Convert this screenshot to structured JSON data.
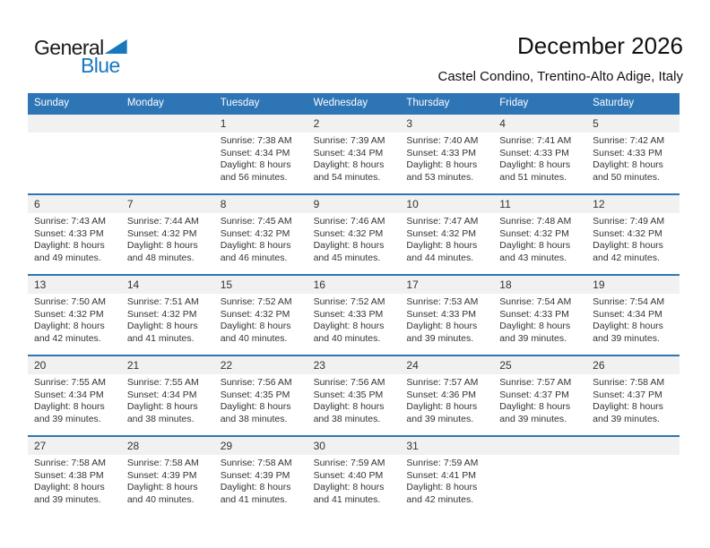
{
  "logo": {
    "general": "General",
    "blue": "Blue"
  },
  "header": {
    "title": "December 2026",
    "subtitle": "Castel Condino, Trentino-Alto Adige, Italy"
  },
  "colors": {
    "header_blue": "#2E75B6",
    "logo_blue": "#1778BE",
    "band_gray": "#F1F1F1",
    "text_dark": "#333333"
  },
  "calendar": {
    "weekdays": [
      "Sunday",
      "Monday",
      "Tuesday",
      "Wednesday",
      "Thursday",
      "Friday",
      "Saturday"
    ],
    "weeks": [
      {
        "days": [
          null,
          null,
          {
            "number": "1",
            "lines": [
              "Sunrise: 7:38 AM",
              "Sunset: 4:34 PM",
              "Daylight: 8 hours",
              "and 56 minutes."
            ]
          },
          {
            "number": "2",
            "lines": [
              "Sunrise: 7:39 AM",
              "Sunset: 4:34 PM",
              "Daylight: 8 hours",
              "and 54 minutes."
            ]
          },
          {
            "number": "3",
            "lines": [
              "Sunrise: 7:40 AM",
              "Sunset: 4:33 PM",
              "Daylight: 8 hours",
              "and 53 minutes."
            ]
          },
          {
            "number": "4",
            "lines": [
              "Sunrise: 7:41 AM",
              "Sunset: 4:33 PM",
              "Daylight: 8 hours",
              "and 51 minutes."
            ]
          },
          {
            "number": "5",
            "lines": [
              "Sunrise: 7:42 AM",
              "Sunset: 4:33 PM",
              "Daylight: 8 hours",
              "and 50 minutes."
            ]
          }
        ]
      },
      {
        "days": [
          {
            "number": "6",
            "lines": [
              "Sunrise: 7:43 AM",
              "Sunset: 4:33 PM",
              "Daylight: 8 hours",
              "and 49 minutes."
            ]
          },
          {
            "number": "7",
            "lines": [
              "Sunrise: 7:44 AM",
              "Sunset: 4:32 PM",
              "Daylight: 8 hours",
              "and 48 minutes."
            ]
          },
          {
            "number": "8",
            "lines": [
              "Sunrise: 7:45 AM",
              "Sunset: 4:32 PM",
              "Daylight: 8 hours",
              "and 46 minutes."
            ]
          },
          {
            "number": "9",
            "lines": [
              "Sunrise: 7:46 AM",
              "Sunset: 4:32 PM",
              "Daylight: 8 hours",
              "and 45 minutes."
            ]
          },
          {
            "number": "10",
            "lines": [
              "Sunrise: 7:47 AM",
              "Sunset: 4:32 PM",
              "Daylight: 8 hours",
              "and 44 minutes."
            ]
          },
          {
            "number": "11",
            "lines": [
              "Sunrise: 7:48 AM",
              "Sunset: 4:32 PM",
              "Daylight: 8 hours",
              "and 43 minutes."
            ]
          },
          {
            "number": "12",
            "lines": [
              "Sunrise: 7:49 AM",
              "Sunset: 4:32 PM",
              "Daylight: 8 hours",
              "and 42 minutes."
            ]
          }
        ]
      },
      {
        "days": [
          {
            "number": "13",
            "lines": [
              "Sunrise: 7:50 AM",
              "Sunset: 4:32 PM",
              "Daylight: 8 hours",
              "and 42 minutes."
            ]
          },
          {
            "number": "14",
            "lines": [
              "Sunrise: 7:51 AM",
              "Sunset: 4:32 PM",
              "Daylight: 8 hours",
              "and 41 minutes."
            ]
          },
          {
            "number": "15",
            "lines": [
              "Sunrise: 7:52 AM",
              "Sunset: 4:32 PM",
              "Daylight: 8 hours",
              "and 40 minutes."
            ]
          },
          {
            "number": "16",
            "lines": [
              "Sunrise: 7:52 AM",
              "Sunset: 4:33 PM",
              "Daylight: 8 hours",
              "and 40 minutes."
            ]
          },
          {
            "number": "17",
            "lines": [
              "Sunrise: 7:53 AM",
              "Sunset: 4:33 PM",
              "Daylight: 8 hours",
              "and 39 minutes."
            ]
          },
          {
            "number": "18",
            "lines": [
              "Sunrise: 7:54 AM",
              "Sunset: 4:33 PM",
              "Daylight: 8 hours",
              "and 39 minutes."
            ]
          },
          {
            "number": "19",
            "lines": [
              "Sunrise: 7:54 AM",
              "Sunset: 4:34 PM",
              "Daylight: 8 hours",
              "and 39 minutes."
            ]
          }
        ]
      },
      {
        "days": [
          {
            "number": "20",
            "lines": [
              "Sunrise: 7:55 AM",
              "Sunset: 4:34 PM",
              "Daylight: 8 hours",
              "and 39 minutes."
            ]
          },
          {
            "number": "21",
            "lines": [
              "Sunrise: 7:55 AM",
              "Sunset: 4:34 PM",
              "Daylight: 8 hours",
              "and 38 minutes."
            ]
          },
          {
            "number": "22",
            "lines": [
              "Sunrise: 7:56 AM",
              "Sunset: 4:35 PM",
              "Daylight: 8 hours",
              "and 38 minutes."
            ]
          },
          {
            "number": "23",
            "lines": [
              "Sunrise: 7:56 AM",
              "Sunset: 4:35 PM",
              "Daylight: 8 hours",
              "and 38 minutes."
            ]
          },
          {
            "number": "24",
            "lines": [
              "Sunrise: 7:57 AM",
              "Sunset: 4:36 PM",
              "Daylight: 8 hours",
              "and 39 minutes."
            ]
          },
          {
            "number": "25",
            "lines": [
              "Sunrise: 7:57 AM",
              "Sunset: 4:37 PM",
              "Daylight: 8 hours",
              "and 39 minutes."
            ]
          },
          {
            "number": "26",
            "lines": [
              "Sunrise: 7:58 AM",
              "Sunset: 4:37 PM",
              "Daylight: 8 hours",
              "and 39 minutes."
            ]
          }
        ]
      },
      {
        "days": [
          {
            "number": "27",
            "lines": [
              "Sunrise: 7:58 AM",
              "Sunset: 4:38 PM",
              "Daylight: 8 hours",
              "and 39 minutes."
            ]
          },
          {
            "number": "28",
            "lines": [
              "Sunrise: 7:58 AM",
              "Sunset: 4:39 PM",
              "Daylight: 8 hours",
              "and 40 minutes."
            ]
          },
          {
            "number": "29",
            "lines": [
              "Sunrise: 7:58 AM",
              "Sunset: 4:39 PM",
              "Daylight: 8 hours",
              "and 41 minutes."
            ]
          },
          {
            "number": "30",
            "lines": [
              "Sunrise: 7:59 AM",
              "Sunset: 4:40 PM",
              "Daylight: 8 hours",
              "and 41 minutes."
            ]
          },
          {
            "number": "31",
            "lines": [
              "Sunrise: 7:59 AM",
              "Sunset: 4:41 PM",
              "Daylight: 8 hours",
              "and 42 minutes."
            ]
          },
          null,
          null
        ]
      }
    ]
  }
}
